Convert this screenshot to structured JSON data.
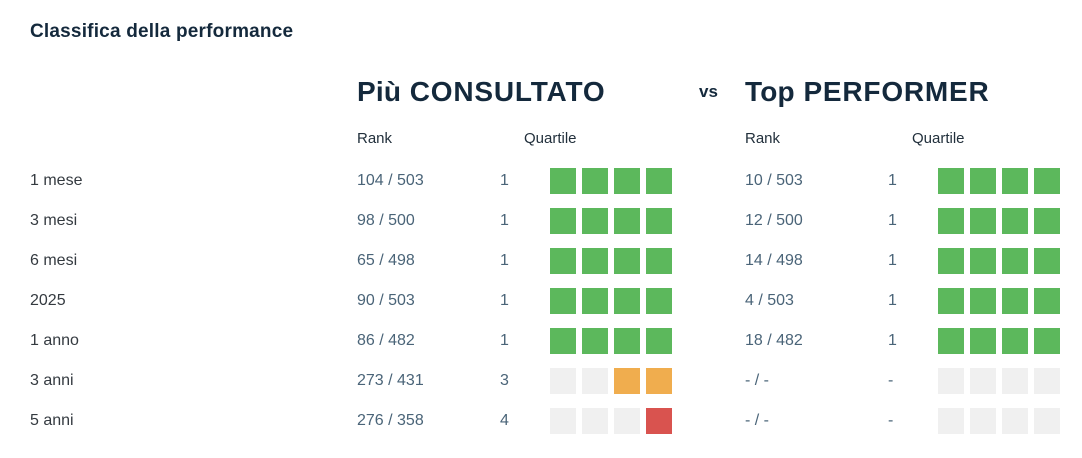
{
  "title": "Classifica della performance",
  "sections": {
    "left": {
      "emphasis": "Più",
      "rest": "CONSULTATO"
    },
    "vs": "vs",
    "right": {
      "emphasis": "Top",
      "rest": "PERFORMER"
    }
  },
  "columns": {
    "rank": "Rank",
    "quartile": "Quartile"
  },
  "colors": {
    "green": "#5cb85c",
    "orange": "#f0ad4e",
    "red": "#d9534f",
    "empty": "#f0f0f0",
    "heading": "#14293c",
    "value_text": "#4a6478"
  },
  "rows": [
    {
      "period": "1 mese",
      "consultato": {
        "rank": "104 / 503",
        "quartile": "1",
        "squares": [
          "green",
          "green",
          "green",
          "green"
        ]
      },
      "performer": {
        "rank": "10 / 503",
        "quartile": "1",
        "squares": [
          "green",
          "green",
          "green",
          "green"
        ]
      }
    },
    {
      "period": "3 mesi",
      "consultato": {
        "rank": "98 / 500",
        "quartile": "1",
        "squares": [
          "green",
          "green",
          "green",
          "green"
        ]
      },
      "performer": {
        "rank": "12 / 500",
        "quartile": "1",
        "squares": [
          "green",
          "green",
          "green",
          "green"
        ]
      }
    },
    {
      "period": "6 mesi",
      "consultato": {
        "rank": "65 / 498",
        "quartile": "1",
        "squares": [
          "green",
          "green",
          "green",
          "green"
        ]
      },
      "performer": {
        "rank": "14 / 498",
        "quartile": "1",
        "squares": [
          "green",
          "green",
          "green",
          "green"
        ]
      }
    },
    {
      "period": "2025",
      "consultato": {
        "rank": "90 / 503",
        "quartile": "1",
        "squares": [
          "green",
          "green",
          "green",
          "green"
        ]
      },
      "performer": {
        "rank": "4 / 503",
        "quartile": "1",
        "squares": [
          "green",
          "green",
          "green",
          "green"
        ]
      }
    },
    {
      "period": "1 anno",
      "consultato": {
        "rank": "86 / 482",
        "quartile": "1",
        "squares": [
          "green",
          "green",
          "green",
          "green"
        ]
      },
      "performer": {
        "rank": "18 / 482",
        "quartile": "1",
        "squares": [
          "green",
          "green",
          "green",
          "green"
        ]
      }
    },
    {
      "period": "3 anni",
      "consultato": {
        "rank": "273 / 431",
        "quartile": "3",
        "squares": [
          "empty",
          "empty",
          "orange",
          "orange"
        ]
      },
      "performer": {
        "rank": "- / -",
        "quartile": "-",
        "squares": [
          "empty",
          "empty",
          "empty",
          "empty"
        ]
      }
    },
    {
      "period": "5 anni",
      "consultato": {
        "rank": "276 / 358",
        "quartile": "4",
        "squares": [
          "empty",
          "empty",
          "empty",
          "red"
        ]
      },
      "performer": {
        "rank": "- / -",
        "quartile": "-",
        "squares": [
          "empty",
          "empty",
          "empty",
          "empty"
        ]
      }
    }
  ]
}
